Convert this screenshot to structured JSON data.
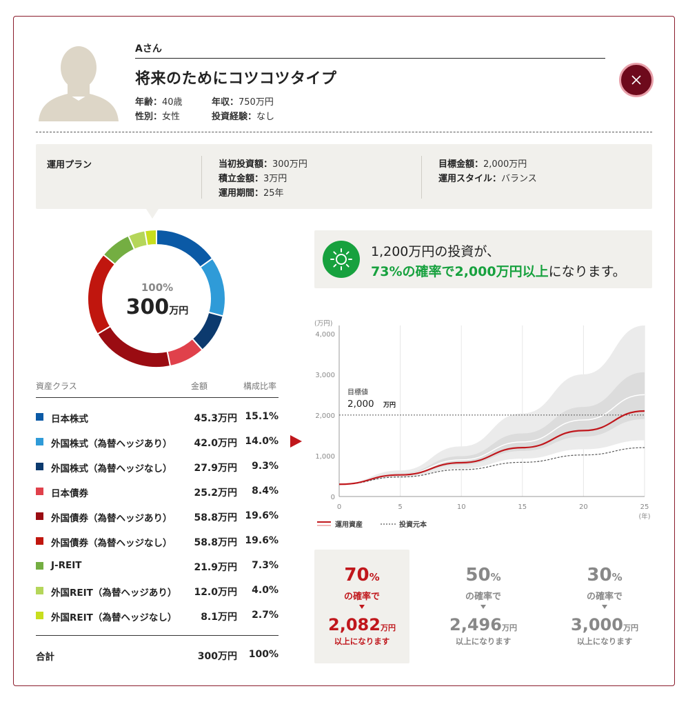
{
  "profile": {
    "name": "Aさん",
    "type_title": "将来のためにコツコツタイプ",
    "age_label": "年齢：",
    "age_value": "40歳",
    "income_label": "年収：",
    "income_value": "750万円",
    "gender_label": "性別：",
    "gender_value": "女性",
    "experience_label": "投資経験：",
    "experience_value": "なし"
  },
  "plan": {
    "title": "運用プラン",
    "initial_label": "当初投資額：",
    "initial_value": "300万円",
    "monthly_label": "積立金額：",
    "monthly_value": "3万円",
    "period_label": "運用期間：",
    "period_value": "25年",
    "target_label": "目標金額：",
    "target_value": "2,000万円",
    "style_label": "運用スタイル：",
    "style_value": "バランス"
  },
  "donut": {
    "percent": "100%",
    "amount": "300",
    "unit": "万円"
  },
  "table": {
    "headers": {
      "asset_class": "資産クラス",
      "amount": "金額",
      "ratio": "構成比率"
    },
    "rows": [
      {
        "label": "日本株式",
        "amount": "45.3万円",
        "ratio": "15.1%",
        "value": 15.1,
        "color": "#0b5aa6"
      },
      {
        "label": "外国株式（為替ヘッジあり）",
        "amount": "42.0万円",
        "ratio": "14.0%",
        "value": 14.0,
        "color": "#2f9bd8"
      },
      {
        "label": "外国株式（為替ヘッジなし）",
        "amount": "27.9万円",
        "ratio": "9.3%",
        "value": 9.3,
        "color": "#0c3a6e"
      },
      {
        "label": "日本債券",
        "amount": "25.2万円",
        "ratio": "8.4%",
        "value": 8.4,
        "color": "#e0414b"
      },
      {
        "label": "外国債券（為替ヘッジあり）",
        "amount": "58.8万円",
        "ratio": "19.6%",
        "value": 19.6,
        "color": "#9a0c12"
      },
      {
        "label": "外国債券（為替ヘッジなし）",
        "amount": "58.8万円",
        "ratio": "19.6%",
        "value": 19.6,
        "color": "#c0160e"
      },
      {
        "label": "J-REIT",
        "amount": "21.9万円",
        "ratio": "7.3%",
        "value": 7.3,
        "color": "#74ae42"
      },
      {
        "label": "外国REIT（為替ヘッジあり）",
        "amount": "12.0万円",
        "ratio": "4.0%",
        "value": 4.0,
        "color": "#b5d65a"
      },
      {
        "label": "外国REIT（為替ヘッジなし）",
        "amount": "8.1万円",
        "ratio": "2.7%",
        "value": 2.7,
        "color": "#c8de1e"
      }
    ],
    "total": {
      "label": "合計",
      "amount": "300万円",
      "ratio": "100%"
    }
  },
  "result": {
    "line1": "1,200万円の投資が、",
    "line2_highlight": "73%の確率で2,000万円以上",
    "line2_rest": "になります。"
  },
  "chart_data": {
    "type": "area",
    "yunit": "(万円)",
    "xunit": "(年)",
    "x_ticks": [
      0,
      5,
      10,
      15,
      20,
      25
    ],
    "y_ticks": [
      0,
      1000,
      2000,
      3000,
      4000
    ],
    "y_tick_labels": [
      "0",
      "1,000",
      "2,000",
      "3,000",
      "4,000"
    ],
    "xlim": [
      0,
      25
    ],
    "ylim": [
      0,
      4200
    ],
    "target": {
      "label": "目標値",
      "value": 2000,
      "value_label": "2,000",
      "unit": "万円"
    },
    "x": [
      0,
      5,
      10,
      15,
      20,
      25
    ],
    "series": [
      {
        "name": "運用資産",
        "values": [
          300,
          530,
          830,
          1200,
          1620,
          2100
        ],
        "color": "#c0171c"
      },
      {
        "name": "投資元本",
        "values": [
          300,
          480,
          660,
          840,
          1020,
          1200
        ],
        "color": "#555555"
      }
    ],
    "outer_band": {
      "low": [
        300,
        470,
        690,
        930,
        1160,
        1380
      ],
      "high": [
        300,
        640,
        1230,
        2040,
        3000,
        4400
      ]
    },
    "inner_band": {
      "low": [
        300,
        510,
        780,
        1120,
        1470,
        1900
      ],
      "high": [
        300,
        570,
        990,
        1550,
        2200,
        3050
      ]
    },
    "median": [
      300,
      540,
      900,
      1340,
      1880,
      2500
    ],
    "legend": {
      "asset": "運用資産",
      "principal": "投資元本"
    }
  },
  "cards": [
    {
      "prob": "70",
      "prob_unit": "%",
      "prob_text": "の確率で",
      "value": "2,082",
      "unit": "万円",
      "suffix": "以上になります"
    },
    {
      "prob": "50",
      "prob_unit": "%",
      "prob_text": "の確率で",
      "value": "2,496",
      "unit": "万円",
      "suffix": "以上になります"
    },
    {
      "prob": "30",
      "prob_unit": "%",
      "prob_text": "の確率で",
      "value": "3,000",
      "unit": "万円",
      "suffix": "以上になります"
    }
  ]
}
